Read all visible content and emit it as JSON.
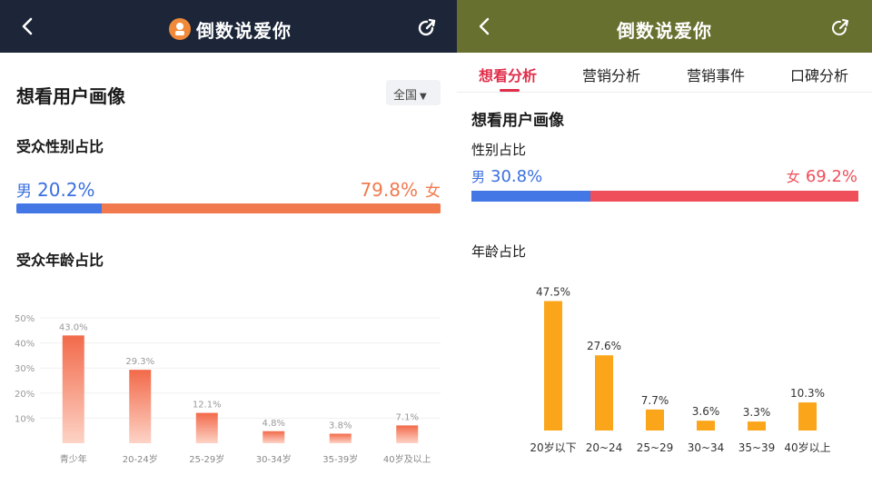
{
  "left": {
    "header": {
      "title": "倒数说爱你"
    },
    "section_title": "想看用户画像",
    "region": "全国",
    "gender": {
      "title": "受众性别占比",
      "male_label": "男",
      "male_value": "20.2%",
      "female_label": "女",
      "female_value": "79.8%",
      "male_fraction": 0.202
    },
    "age_title": "受众年龄占比",
    "colors": {
      "header": "#1c2638",
      "male": "#4477e6",
      "female": "#f07a4e",
      "bar_top": "#f26a4a",
      "bar_bottom": "#fdd3c6"
    }
  },
  "right": {
    "header": {
      "title": "倒数说爱你"
    },
    "tabs": [
      "想看分析",
      "营销分析",
      "营销事件",
      "口碑分析"
    ],
    "active_tab": 0,
    "section_title": "想看用户画像",
    "gender": {
      "title": "性别占比",
      "male_label": "男",
      "male_value": "30.8%",
      "female_label": "女",
      "female_value": "69.2%",
      "male_fraction": 0.308
    },
    "age_title": "年龄占比",
    "colors": {
      "header": "#687030",
      "accent": "#e02e4a",
      "male": "#4477e6",
      "female": "#ef4f5a",
      "bar": "#fba51a"
    }
  },
  "chart_data": [
    {
      "type": "bar",
      "title": "受众年龄占比",
      "categories": [
        "青少年",
        "20-24岁",
        "25-29岁",
        "30-34岁",
        "35-39岁",
        "40岁及以上"
      ],
      "values": [
        43.0,
        29.3,
        12.1,
        4.8,
        3.8,
        7.1
      ],
      "value_labels": [
        "43.0%",
        "29.3%",
        "12.1%",
        "4.8%",
        "3.8%",
        "7.1%"
      ],
      "yticks": [
        "10%",
        "20%",
        "30%",
        "40%",
        "50%"
      ],
      "ylim": [
        0,
        50
      ],
      "grid": true
    },
    {
      "type": "bar",
      "title": "年龄占比",
      "categories": [
        "20岁以下",
        "20~24",
        "25~29",
        "30~34",
        "35~39",
        "40岁以上"
      ],
      "values": [
        47.5,
        27.6,
        7.7,
        3.6,
        3.3,
        10.3
      ],
      "value_labels": [
        "47.5%",
        "27.6%",
        "7.7%",
        "3.6%",
        "3.3%",
        "10.3%"
      ],
      "grid": false
    }
  ]
}
